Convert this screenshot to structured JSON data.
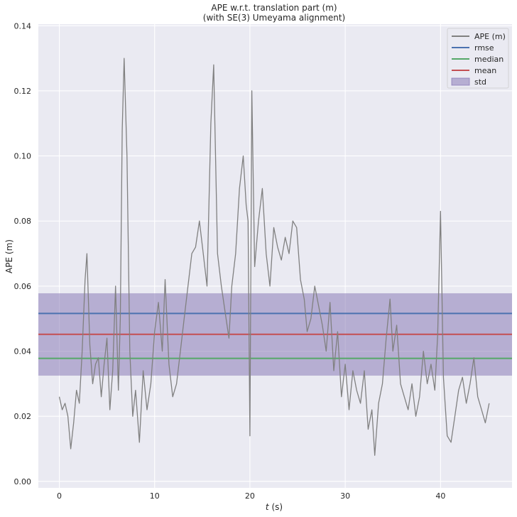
{
  "chart_data": {
    "type": "line",
    "title": "APE w.r.t. translation part (m)",
    "subtitle": "(with SE(3) Umeyama alignment)",
    "xlabel_italic": "t",
    "xlabel_rest": " (s)",
    "ylabel": "APE (m)",
    "xlim": [
      -2.2,
      47.5
    ],
    "ylim": [
      -0.002,
      0.1405
    ],
    "x_ticks": [
      0,
      10,
      20,
      30,
      40
    ],
    "x_tick_labels": [
      "0",
      "10",
      "20",
      "30",
      "40"
    ],
    "y_ticks": [
      0.0,
      0.02,
      0.04,
      0.06,
      0.08,
      0.1,
      0.12,
      0.14
    ],
    "y_tick_labels": [
      "0.00",
      "0.02",
      "0.04",
      "0.06",
      "0.08",
      "0.10",
      "0.12",
      "0.14"
    ],
    "grid": true,
    "legend_position": "top-right",
    "stats": {
      "rmse": 0.0516,
      "median": 0.0378,
      "mean": 0.0452,
      "std_low": 0.0325,
      "std_high": 0.0578
    },
    "series": [
      {
        "name": "APE (m)",
        "color": "#808080",
        "x": [
          0.0,
          0.3,
          0.6,
          0.9,
          1.2,
          1.5,
          1.8,
          2.1,
          2.4,
          2.7,
          2.9,
          3.2,
          3.5,
          3.8,
          4.1,
          4.4,
          4.7,
          5.0,
          5.3,
          5.6,
          5.9,
          6.2,
          6.4,
          6.6,
          6.8,
          7.1,
          7.4,
          7.7,
          8.0,
          8.4,
          8.8,
          9.2,
          9.6,
          10.0,
          10.4,
          10.8,
          11.1,
          11.5,
          11.9,
          12.3,
          12.7,
          13.1,
          13.5,
          13.9,
          14.3,
          14.7,
          15.1,
          15.5,
          15.9,
          16.2,
          16.6,
          17.0,
          17.4,
          17.8,
          18.1,
          18.5,
          18.9,
          19.3,
          19.6,
          19.8,
          20.0,
          20.2,
          20.5,
          20.9,
          21.3,
          21.7,
          22.1,
          22.5,
          22.9,
          23.3,
          23.7,
          24.1,
          24.5,
          24.9,
          25.3,
          25.7,
          26.0,
          26.4,
          26.8,
          27.2,
          27.6,
          28.0,
          28.4,
          28.8,
          29.2,
          29.6,
          30.0,
          30.4,
          30.8,
          31.2,
          31.6,
          32.0,
          32.4,
          32.8,
          33.1,
          33.5,
          33.9,
          34.3,
          34.7,
          35.0,
          35.4,
          35.8,
          36.2,
          36.6,
          37.0,
          37.4,
          37.8,
          38.2,
          38.6,
          39.0,
          39.4,
          39.7,
          40.0,
          40.3,
          40.7,
          41.1,
          41.5,
          41.9,
          42.3,
          42.7,
          43.1,
          43.5,
          43.9,
          44.3,
          44.7,
          45.1
        ],
        "y": [
          0.026,
          0.022,
          0.024,
          0.02,
          0.01,
          0.018,
          0.028,
          0.024,
          0.04,
          0.062,
          0.07,
          0.042,
          0.03,
          0.036,
          0.038,
          0.026,
          0.036,
          0.044,
          0.022,
          0.034,
          0.06,
          0.028,
          0.05,
          0.108,
          0.13,
          0.1,
          0.04,
          0.02,
          0.028,
          0.012,
          0.034,
          0.022,
          0.03,
          0.046,
          0.055,
          0.04,
          0.062,
          0.036,
          0.026,
          0.03,
          0.04,
          0.05,
          0.06,
          0.07,
          0.072,
          0.08,
          0.07,
          0.06,
          0.11,
          0.128,
          0.07,
          0.06,
          0.052,
          0.044,
          0.06,
          0.07,
          0.09,
          0.1,
          0.085,
          0.08,
          0.014,
          0.12,
          0.066,
          0.08,
          0.09,
          0.07,
          0.06,
          0.078,
          0.072,
          0.068,
          0.075,
          0.07,
          0.08,
          0.078,
          0.062,
          0.056,
          0.046,
          0.05,
          0.06,
          0.054,
          0.048,
          0.04,
          0.055,
          0.034,
          0.046,
          0.026,
          0.036,
          0.022,
          0.034,
          0.028,
          0.024,
          0.034,
          0.016,
          0.022,
          0.008,
          0.024,
          0.03,
          0.044,
          0.056,
          0.04,
          0.048,
          0.03,
          0.026,
          0.022,
          0.03,
          0.02,
          0.026,
          0.04,
          0.03,
          0.036,
          0.028,
          0.045,
          0.083,
          0.032,
          0.014,
          0.012,
          0.02,
          0.028,
          0.032,
          0.024,
          0.03,
          0.038,
          0.026,
          0.022,
          0.018,
          0.024
        ]
      }
    ],
    "legend": [
      {
        "label": "APE (m)",
        "color": "#808080",
        "kind": "line"
      },
      {
        "label": "rmse",
        "color": "#4c72b0",
        "kind": "line"
      },
      {
        "label": "median",
        "color": "#55a868",
        "kind": "line"
      },
      {
        "label": "mean",
        "color": "#c44e52",
        "kind": "line"
      },
      {
        "label": "std",
        "color": "#8172b2",
        "kind": "patch"
      }
    ],
    "colors": {
      "background": "#eaeaf2",
      "grid": "#ffffff",
      "ape": "#808080",
      "rmse": "#4c72b0",
      "median": "#55a868",
      "mean": "#c44e52",
      "std": "#8172b2"
    }
  }
}
